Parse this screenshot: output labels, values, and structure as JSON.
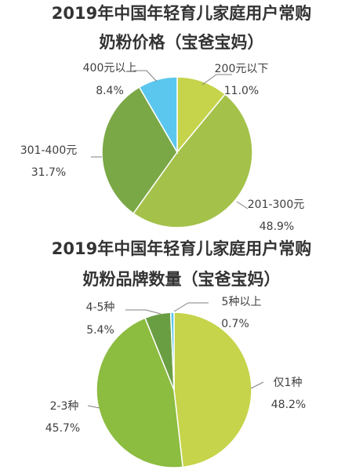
{
  "chart_data": [
    {
      "type": "pie",
      "title_lines": [
        "2019年中国年轻育儿家庭用户常购",
        "奶粉价格（宝爸宝妈）"
      ],
      "slices": [
        {
          "label": "200元以下",
          "value_text": "11.0%",
          "value": 11.0,
          "color": "#c5d44a"
        },
        {
          "label": "201-300元",
          "value_text": "48.9%",
          "value": 48.9,
          "color": "#a4c14a"
        },
        {
          "label": "301-400元",
          "value_text": "31.7%",
          "value": 31.7,
          "color": "#7ba846"
        },
        {
          "label": "400元以上",
          "value_text": "8.4%",
          "value": 8.4,
          "color": "#5bc7ee"
        }
      ]
    },
    {
      "type": "pie",
      "title_lines": [
        "2019年中国年轻育儿家庭用户常购",
        "奶粉品牌数量（宝爸宝妈）"
      ],
      "slices": [
        {
          "label": "仅1种",
          "value_text": "48.2%",
          "value": 48.2,
          "color": "#c5d44a"
        },
        {
          "label": "2-3种",
          "value_text": "45.7%",
          "value": 45.7,
          "color": "#8cbc40"
        },
        {
          "label": "4-5种",
          "value_text": "5.4%",
          "value": 5.4,
          "color": "#6a9e43"
        },
        {
          "label": "5种以上",
          "value_text": "0.7%",
          "value": 0.7,
          "color": "#5bc7ee"
        }
      ]
    }
  ]
}
